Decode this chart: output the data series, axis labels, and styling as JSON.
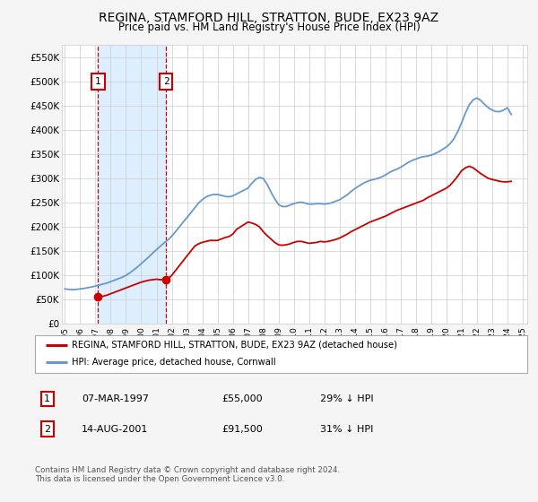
{
  "title": "REGINA, STAMFORD HILL, STRATTON, BUDE, EX23 9AZ",
  "subtitle": "Price paid vs. HM Land Registry's House Price Index (HPI)",
  "xlim_left": 1994.8,
  "xlim_right": 2025.3,
  "ylim_bottom": 0,
  "ylim_top": 575000,
  "yticks": [
    0,
    50000,
    100000,
    150000,
    200000,
    250000,
    300000,
    350000,
    400000,
    450000,
    500000,
    550000
  ],
  "ytick_labels": [
    "£0",
    "£50K",
    "£100K",
    "£150K",
    "£200K",
    "£250K",
    "£300K",
    "£350K",
    "£400K",
    "£450K",
    "£500K",
    "£550K"
  ],
  "xticks": [
    1995,
    1996,
    1997,
    1998,
    1999,
    2000,
    2001,
    2002,
    2003,
    2004,
    2005,
    2006,
    2007,
    2008,
    2009,
    2010,
    2011,
    2012,
    2013,
    2014,
    2015,
    2016,
    2017,
    2018,
    2019,
    2020,
    2021,
    2022,
    2023,
    2024,
    2025
  ],
  "grid_color": "#cccccc",
  "background_color": "#f5f5f5",
  "plot_bg_color": "#ffffff",
  "red_line_color": "#cc0000",
  "blue_line_color": "#6699cc",
  "sale1_x": 1997.18,
  "sale1_y": 55000,
  "sale2_x": 2001.62,
  "sale2_y": 91500,
  "vline_color": "#cc0000",
  "vband_color": "#ddeeff",
  "legend_label_red": "REGINA, STAMFORD HILL, STRATTON, BUDE, EX23 9AZ (detached house)",
  "legend_label_blue": "HPI: Average price, detached house, Cornwall",
  "table_row1": [
    "1",
    "07-MAR-1997",
    "£55,000",
    "29% ↓ HPI"
  ],
  "table_row2": [
    "2",
    "14-AUG-2001",
    "£91,500",
    "31% ↓ HPI"
  ],
  "footer": "Contains HM Land Registry data © Crown copyright and database right 2024.\nThis data is licensed under the Open Government Licence v3.0.",
  "hpi_years": [
    1995.0,
    1995.25,
    1995.5,
    1995.75,
    1996.0,
    1996.25,
    1996.5,
    1996.75,
    1997.0,
    1997.25,
    1997.5,
    1997.75,
    1998.0,
    1998.25,
    1998.5,
    1998.75,
    1999.0,
    1999.25,
    1999.5,
    1999.75,
    2000.0,
    2000.25,
    2000.5,
    2000.75,
    2001.0,
    2001.25,
    2001.5,
    2001.75,
    2002.0,
    2002.25,
    2002.5,
    2002.75,
    2003.0,
    2003.25,
    2003.5,
    2003.75,
    2004.0,
    2004.25,
    2004.5,
    2004.75,
    2005.0,
    2005.25,
    2005.5,
    2005.75,
    2006.0,
    2006.25,
    2006.5,
    2006.75,
    2007.0,
    2007.25,
    2007.5,
    2007.75,
    2008.0,
    2008.25,
    2008.5,
    2008.75,
    2009.0,
    2009.25,
    2009.5,
    2009.75,
    2010.0,
    2010.25,
    2010.5,
    2010.75,
    2011.0,
    2011.25,
    2011.5,
    2011.75,
    2012.0,
    2012.25,
    2012.5,
    2012.75,
    2013.0,
    2013.25,
    2013.5,
    2013.75,
    2014.0,
    2014.25,
    2014.5,
    2014.75,
    2015.0,
    2015.25,
    2015.5,
    2015.75,
    2016.0,
    2016.25,
    2016.5,
    2016.75,
    2017.0,
    2017.25,
    2017.5,
    2017.75,
    2018.0,
    2018.25,
    2018.5,
    2018.75,
    2019.0,
    2019.25,
    2019.5,
    2019.75,
    2020.0,
    2020.25,
    2020.5,
    2020.75,
    2021.0,
    2021.25,
    2021.5,
    2021.75,
    2022.0,
    2022.25,
    2022.5,
    2022.75,
    2023.0,
    2023.25,
    2023.5,
    2023.75,
    2024.0,
    2024.25
  ],
  "hpi_values": [
    72000,
    71000,
    70500,
    71000,
    72000,
    73000,
    74500,
    76000,
    78000,
    80000,
    82000,
    84000,
    87000,
    90000,
    93000,
    96000,
    100000,
    105000,
    111000,
    117000,
    124000,
    131000,
    138000,
    146000,
    153000,
    160000,
    167000,
    173000,
    181000,
    190000,
    200000,
    210000,
    219000,
    229000,
    239000,
    249000,
    256000,
    262000,
    265000,
    267000,
    267000,
    265000,
    263000,
    262000,
    264000,
    268000,
    272000,
    276000,
    280000,
    290000,
    298000,
    302000,
    300000,
    288000,
    272000,
    258000,
    246000,
    242000,
    242000,
    245000,
    248000,
    250000,
    251000,
    249000,
    247000,
    247000,
    248000,
    248000,
    247000,
    248000,
    250000,
    253000,
    256000,
    261000,
    266000,
    273000,
    279000,
    284000,
    289000,
    293000,
    296000,
    298000,
    300000,
    303000,
    307000,
    312000,
    316000,
    319000,
    323000,
    328000,
    333000,
    337000,
    340000,
    343000,
    345000,
    346000,
    348000,
    351000,
    355000,
    360000,
    365000,
    372000,
    382000,
    397000,
    415000,
    435000,
    452000,
    462000,
    466000,
    461000,
    453000,
    446000,
    441000,
    438000,
    438000,
    441000,
    446000,
    432000
  ],
  "red_years": [
    1997.18,
    1997.5,
    1997.75,
    1998.0,
    1998.25,
    1998.5,
    1998.75,
    1999.0,
    1999.25,
    1999.5,
    1999.75,
    2000.0,
    2000.25,
    2000.5,
    2000.75,
    2001.0,
    2001.25,
    2001.5,
    2001.62,
    2001.75,
    2002.0,
    2002.25,
    2002.5,
    2002.75,
    2003.0,
    2003.25,
    2003.5,
    2003.75,
    2004.0,
    2004.25,
    2004.5,
    2004.75,
    2005.0,
    2005.25,
    2005.5,
    2005.75,
    2006.0,
    2006.25,
    2006.5,
    2006.75,
    2007.0,
    2007.25,
    2007.5,
    2007.75,
    2008.0,
    2008.25,
    2008.5,
    2008.75,
    2009.0,
    2009.25,
    2009.5,
    2009.75,
    2010.0,
    2010.25,
    2010.5,
    2010.75,
    2011.0,
    2011.25,
    2011.5,
    2011.75,
    2012.0,
    2012.25,
    2012.5,
    2012.75,
    2013.0,
    2013.25,
    2013.5,
    2013.75,
    2014.0,
    2014.25,
    2014.5,
    2014.75,
    2015.0,
    2015.25,
    2015.5,
    2015.75,
    2016.0,
    2016.25,
    2016.5,
    2016.75,
    2017.0,
    2017.25,
    2017.5,
    2017.75,
    2018.0,
    2018.25,
    2018.5,
    2018.75,
    2019.0,
    2019.25,
    2019.5,
    2019.75,
    2020.0,
    2020.25,
    2020.5,
    2020.75,
    2021.0,
    2021.25,
    2021.5,
    2021.75,
    2022.0,
    2022.25,
    2022.5,
    2022.75,
    2023.0,
    2023.25,
    2023.5,
    2023.75,
    2024.0,
    2024.25
  ],
  "red_values": [
    55000,
    57000,
    59000,
    62000,
    65000,
    68000,
    71000,
    74000,
    77000,
    80000,
    83000,
    86000,
    88000,
    90000,
    91000,
    92000,
    91000,
    91500,
    91500,
    93000,
    100000,
    110000,
    120000,
    130000,
    140000,
    150000,
    160000,
    165000,
    168000,
    170000,
    172000,
    172000,
    172000,
    175000,
    178000,
    180000,
    185000,
    195000,
    200000,
    205000,
    210000,
    208000,
    205000,
    200000,
    190000,
    182000,
    175000,
    168000,
    163000,
    162000,
    163000,
    165000,
    168000,
    170000,
    170000,
    168000,
    166000,
    167000,
    168000,
    170000,
    169000,
    170000,
    172000,
    174000,
    177000,
    181000,
    185000,
    190000,
    194000,
    198000,
    202000,
    206000,
    210000,
    213000,
    216000,
    219000,
    222000,
    226000,
    230000,
    234000,
    237000,
    240000,
    243000,
    246000,
    249000,
    252000,
    255000,
    260000,
    264000,
    268000,
    272000,
    276000,
    280000,
    286000,
    295000,
    305000,
    316000,
    322000,
    325000,
    322000,
    316000,
    310000,
    305000,
    300000,
    298000,
    296000,
    294000,
    293000,
    293000,
    294000
  ]
}
